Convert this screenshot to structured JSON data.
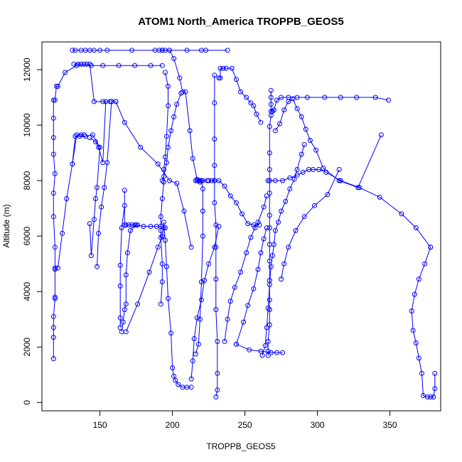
{
  "chart_data": {
    "type": "line",
    "title": "ATOM1 North_America TROPPB_GEOS5",
    "xlabel": "TROPPB_GEOS5",
    "ylabel": "Altitude (m)",
    "xlim": [
      110,
      385
    ],
    "ylim": [
      -300,
      13000
    ],
    "xticks": [
      150,
      200,
      250,
      300,
      350
    ],
    "yticks": [
      0,
      2000,
      4000,
      6000,
      8000,
      10000,
      12000
    ],
    "grid": false,
    "legend": "none",
    "series_color": "#0000ff",
    "series": [
      {
        "x": [
          118,
          118,
          118,
          118,
          119,
          119,
          119,
          119,
          119,
          118,
          118,
          119,
          118,
          118,
          118,
          118,
          119,
          120,
          121,
          126,
          134,
          144,
          152,
          163,
          174,
          185,
          193
        ],
        "y": [
          1580,
          2350,
          2700,
          3100,
          3750,
          3800,
          4850,
          4800,
          5600,
          6700,
          7550,
          8250,
          8950,
          9550,
          10250,
          10900,
          10900,
          11400,
          11400,
          11900,
          12150,
          12150,
          12150,
          12150,
          12150,
          12150,
          12150
        ]
      },
      {
        "x": [
          131,
          133,
          137,
          140,
          143,
          146,
          150,
          155,
          172,
          188,
          191,
          193,
          198,
          210,
          220,
          223,
          238
        ],
        "y": [
          12700,
          12700,
          12700,
          12700,
          12700,
          12700,
          12700,
          12700,
          12700,
          12700,
          12700,
          12700,
          12700,
          12700,
          12700,
          12700,
          12700
        ]
      },
      {
        "x": [
          193,
          195,
          198,
          201,
          205,
          207,
          209,
          212,
          214,
          217,
          219,
          221,
          224
        ],
        "y": [
          12700,
          12700,
          12700,
          12400,
          11700,
          11200,
          11200,
          9800,
          8800,
          8050,
          7950,
          8000,
          8000
        ]
      },
      {
        "x": [
          143,
          147,
          149,
          152,
          154,
          157,
          152,
          146,
          143,
          141,
          139,
          137,
          135,
          132
        ],
        "y": [
          9550,
          9400,
          9200,
          8650,
          10850,
          10850,
          10850,
          10850,
          12200,
          12200,
          12200,
          12200,
          12200,
          12200
        ]
      },
      {
        "x": [
          131,
          133,
          136,
          140,
          145,
          150,
          148,
          147,
          146,
          144,
          143
        ],
        "y": [
          8600,
          9600,
          9600,
          9600,
          9650,
          9200,
          7750,
          7350,
          6600,
          5300,
          6450
        ]
      },
      {
        "x": [
          121,
          124,
          127,
          131,
          134,
          137,
          139
        ],
        "y": [
          4850,
          6100,
          7350,
          8600,
          9650,
          9650,
          9650
        ]
      },
      {
        "x": [
          148,
          149,
          151,
          153,
          155,
          158,
          158,
          161
        ],
        "y": [
          4900,
          6100,
          7050,
          7750,
          8650,
          10850,
          10850,
          10850
        ]
      },
      {
        "x": [
          164,
          164,
          164,
          164,
          165,
          167,
          167,
          167,
          168,
          170,
          172,
          174,
          176
        ],
        "y": [
          2700,
          3050,
          4200,
          4950,
          6300,
          7100,
          7650,
          6400,
          6400,
          6400,
          6400,
          6400,
          6400
        ]
      },
      {
        "x": [
          161,
          167,
          178,
          190,
          198,
          203,
          208,
          213
        ],
        "y": [
          10850,
          10100,
          9200,
          8600,
          8000,
          7900,
          6900,
          5600
        ]
      },
      {
        "x": [
          165,
          166,
          167,
          168,
          168,
          169,
          171,
          175,
          180,
          185,
          189,
          192
        ],
        "y": [
          2550,
          2900,
          3350,
          3550,
          4600,
          5400,
          6200,
          6400,
          6350,
          6350,
          6350,
          6350
        ]
      },
      {
        "x": [
          168,
          176,
          184,
          190,
          193,
          194,
          195
        ],
        "y": [
          2550,
          3550,
          4700,
          5600,
          6000,
          6300,
          6300
        ]
      },
      {
        "x": [
          192,
          193,
          193,
          192,
          192,
          192,
          193,
          194,
          194,
          195,
          196,
          197,
          197,
          195
        ],
        "y": [
          3550,
          4350,
          5000,
          5950,
          6200,
          6700,
          7350,
          7950,
          8400,
          8850,
          9600,
          10700,
          11400,
          11900
        ]
      },
      {
        "x": [
          193,
          194,
          196,
          197,
          199,
          201,
          203,
          206
        ],
        "y": [
          8000,
          8150,
          8650,
          9200,
          9800,
          10300,
          10750,
          11150
        ]
      },
      {
        "x": [
          194,
          195,
          196,
          197,
          199,
          200,
          201,
          202,
          204,
          207,
          210,
          213
        ],
        "y": [
          6500,
          5850,
          4900,
          3750,
          2500,
          1250,
          950,
          800,
          650,
          550,
          550,
          550
        ]
      },
      {
        "x": [
          216,
          218,
          219,
          220,
          221,
          221,
          221,
          220,
          219,
          218,
          217,
          216
        ],
        "y": [
          1750,
          2100,
          3000,
          4350,
          6000,
          6900,
          7700,
          8000,
          8000,
          8000,
          8000,
          8000
        ]
      },
      {
        "x": [
          213,
          214,
          215,
          217,
          220,
          222,
          225,
          229,
          232
        ],
        "y": [
          850,
          1500,
          2300,
          3050,
          3700,
          4400,
          5000,
          5600,
          6350
        ]
      },
      {
        "x": [
          230,
          231,
          231,
          231,
          230,
          230,
          230,
          230,
          229,
          229,
          229,
          229,
          229,
          229
        ],
        "y": [
          200,
          450,
          1050,
          2200,
          3350,
          4450,
          5600,
          6400,
          7200,
          8000,
          8550,
          9500,
          10800,
          11800
        ]
      },
      {
        "x": [
          225,
          227,
          229,
          232,
          236,
          240,
          244,
          248,
          252,
          256,
          260
        ],
        "y": [
          8000,
          8000,
          8000,
          8000,
          7800,
          7450,
          7200,
          6800,
          6450,
          6400,
          6400
        ]
      },
      {
        "x": [
          232,
          233,
          233,
          235,
          237,
          241,
          244,
          247,
          251,
          254,
          256,
          258,
          261
        ],
        "y": [
          11700,
          11700,
          12050,
          12050,
          12050,
          12050,
          11650,
          11200,
          11000,
          10800,
          10700,
          10400,
          10100
        ]
      },
      {
        "x": [
          236,
          238,
          240,
          243,
          247,
          251,
          254,
          257,
          259,
          263,
          265
        ],
        "y": [
          2200,
          3000,
          3650,
          4150,
          4700,
          5400,
          5950,
          6300,
          6500,
          7050,
          7450
        ]
      },
      {
        "x": [
          244,
          249,
          252,
          256,
          259,
          261,
          263,
          265
        ],
        "y": [
          2100,
          2900,
          3500,
          4100,
          4800,
          5400,
          5900,
          6300
        ]
      },
      {
        "x": [
          244,
          253,
          261,
          268,
          272,
          276
        ],
        "y": [
          2100,
          1900,
          1850,
          1800,
          1800,
          1800
        ]
      },
      {
        "x": [
          266,
          266,
          266,
          267,
          267,
          267,
          267,
          267,
          267,
          267,
          267,
          267,
          267,
          267,
          267,
          267,
          268,
          268,
          268,
          268
        ],
        "y": [
          1700,
          1850,
          2200,
          2800,
          3350,
          3700,
          4400,
          5100,
          5700,
          6300,
          6750,
          7550,
          8000,
          8400,
          9000,
          9950,
          10350,
          10750,
          11000,
          11250
        ]
      },
      {
        "x": [
          262,
          264,
          265,
          266,
          267,
          268,
          269,
          270,
          271,
          273,
          275,
          278,
          281,
          284,
          286,
          289,
          291
        ],
        "y": [
          1700,
          2050,
          2700,
          3400,
          4250,
          4900,
          5300,
          5700,
          6200,
          6500,
          6900,
          7250,
          7700,
          8050,
          8400,
          8950,
          9300
        ]
      },
      {
        "x": [
          268,
          269,
          270,
          272,
          275,
          280,
          286,
          293,
          305,
          316,
          327,
          340,
          349
        ],
        "y": [
          10500,
          10500,
          10550,
          10900,
          11000,
          11000,
          11000,
          11000,
          11000,
          11000,
          11000,
          11000,
          10900
        ]
      },
      {
        "x": [
          271,
          274,
          277,
          280,
          283,
          286,
          289,
          292,
          295,
          299,
          304,
          315,
          328,
          344
        ],
        "y": [
          9800,
          10050,
          10550,
          10850,
          10950,
          10600,
          10300,
          9850,
          9450,
          9100,
          8450,
          8000,
          7750,
          9650
        ]
      },
      {
        "x": [
          275,
          277,
          280,
          285,
          291,
          298,
          307,
          315
        ],
        "y": [
          4450,
          5000,
          5600,
          6200,
          6700,
          7100,
          7500,
          8400
        ]
      },
      {
        "x": [
          266,
          271,
          276,
          281,
          286,
          290,
          294,
          297,
          301,
          306,
          316,
          329,
          343,
          358,
          368,
          378
        ],
        "y": [
          8000,
          8000,
          8000,
          8100,
          8200,
          8300,
          8400,
          8400,
          8400,
          8300,
          8000,
          7750,
          7400,
          6800,
          6300,
          5600
        ]
      },
      {
        "x": [
          378,
          374,
          370,
          367,
          365,
          366,
          368,
          370,
          372,
          373,
          376,
          378,
          380,
          381,
          381
        ],
        "y": [
          5600,
          5000,
          4450,
          3900,
          3300,
          2600,
          2150,
          1600,
          1050,
          250,
          200,
          200,
          200,
          500,
          1050
        ]
      }
    ]
  }
}
